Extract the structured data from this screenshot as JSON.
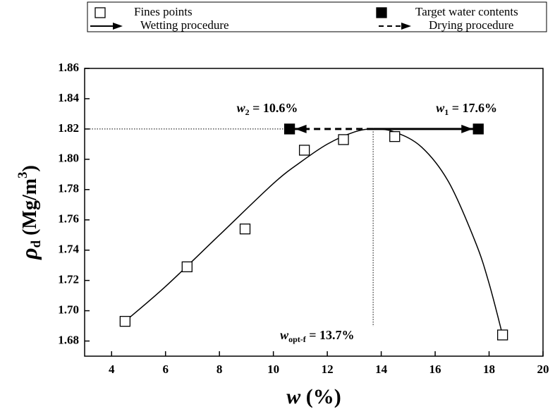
{
  "chart_data": {
    "type": "scatter",
    "xlim": [
      3,
      20
    ],
    "xticks": [
      4,
      6,
      8,
      10,
      12,
      14,
      16,
      18,
      20
    ],
    "ylim": [
      1.67,
      1.86
    ],
    "yticks": [
      1.68,
      {
        "value": 1.7,
        "label": "1.70"
      },
      1.72,
      1.74,
      1.76,
      1.78,
      {
        "value": 1.8,
        "label": "1.80"
      },
      1.82,
      1.84,
      1.86
    ],
    "x_label": {
      "symbol": "w",
      "text": " (%)"
    },
    "y_label": {
      "symbol": "ρ",
      "subscript": "d",
      "text": " (Mg/m",
      "superscript": "3",
      "close": ")"
    },
    "legend": "top",
    "series": [
      {
        "name": "Fines points",
        "marker": "open-square",
        "color": "#000000",
        "x": [
          4.5,
          6.8,
          8.95,
          11.15,
          12.6,
          14.5,
          18.5
        ],
        "values": [
          1.693,
          1.729,
          1.754,
          1.806,
          1.813,
          1.815,
          1.684
        ]
      },
      {
        "name": "Target water contents",
        "marker": "filled-square",
        "color": "#000000",
        "x": [
          10.6,
          17.6
        ],
        "values": [
          1.82,
          1.82
        ]
      },
      {
        "name": "Wetting procedure",
        "marker": "solid-arrow",
        "color": "#000000",
        "x": [
          13.7,
          17.6
        ],
        "values": [
          1.82,
          1.82
        ]
      },
      {
        "name": "Drying procedure",
        "marker": "dashed-arrow",
        "color": "#000000",
        "x": [
          13.7,
          10.6
        ],
        "values": [
          1.82,
          1.82
        ]
      },
      {
        "marker": "curve",
        "color": "#000000",
        "x": [
          4.5,
          6,
          8,
          10,
          11,
          12,
          13,
          13.7,
          14.5,
          15.5,
          16.5,
          17.5,
          18,
          18.5
        ],
        "values": [
          1.693,
          1.716,
          1.75,
          1.784,
          1.798,
          1.81,
          1.818,
          1.82,
          1.818,
          1.808,
          1.785,
          1.745,
          1.718,
          1.684
        ]
      }
    ],
    "annotations": [
      {
        "symbol": "w",
        "subscript": "2",
        "text": " = 10.6%",
        "x": 10.6,
        "y": 1.82
      },
      {
        "symbol": "w",
        "subscript": "1",
        "text": " = 17.6%",
        "x": 17.6,
        "y": 1.82
      },
      {
        "symbol": "w",
        "subscript": "opt-f",
        "text": " = 13.7%",
        "x": 13.7,
        "y": 1.82
      }
    ]
  }
}
